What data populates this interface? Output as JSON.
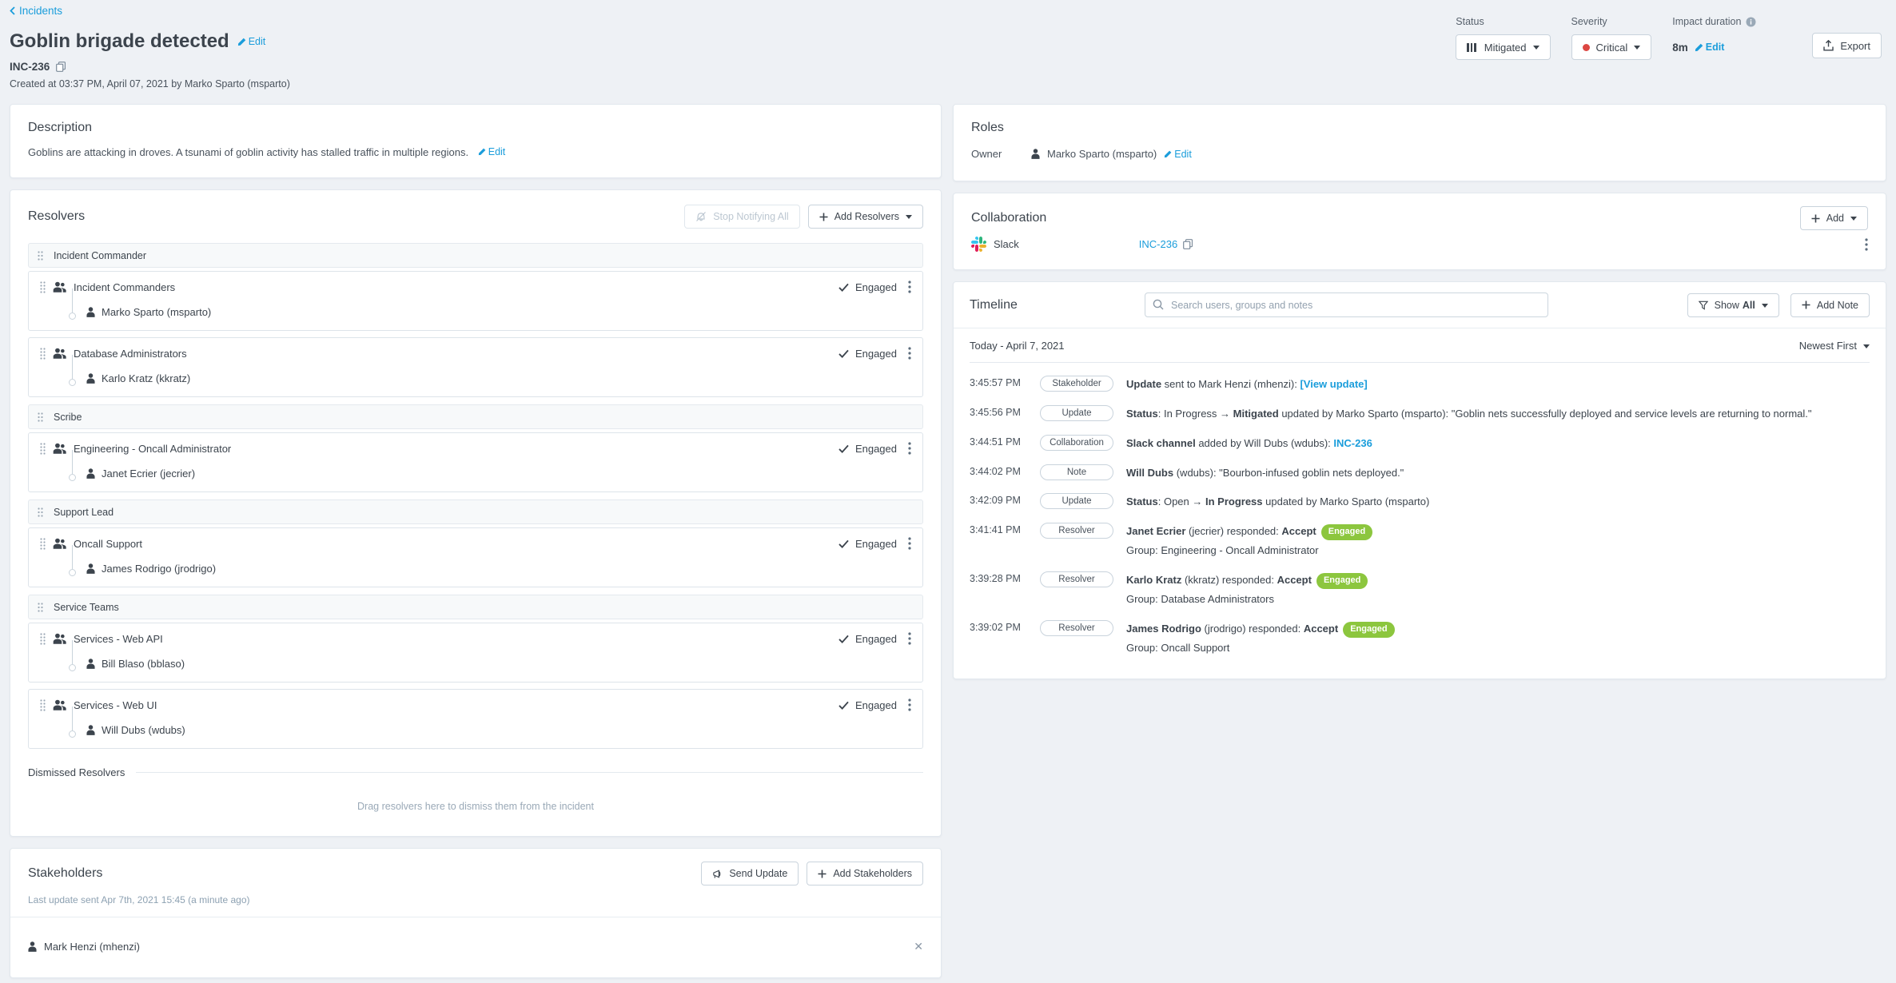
{
  "colors": {
    "accent_blue": "#1a9ddb",
    "engaged_green": "#8cc63e",
    "critical_red": "#dc4742",
    "text_dark": "#3c444d",
    "page_bg": "#eef1f5"
  },
  "header": {
    "back": "Incidents",
    "title": "Goblin brigade detected",
    "edit_label": "Edit",
    "incident_id": "INC-236",
    "created": "Created at 03:37 PM, April 07, 2021 by Marko Sparto (msparto)",
    "status": {
      "label": "Status",
      "value": "Mitigated"
    },
    "severity": {
      "label": "Severity",
      "value": "Critical"
    },
    "impact": {
      "label": "Impact duration",
      "value": "8m",
      "edit": "Edit"
    },
    "export_label": "Export"
  },
  "description": {
    "heading": "Description",
    "text": "Goblins are attacking in droves.  A tsunami of goblin activity has stalled traffic in multiple regions.",
    "edit": "Edit"
  },
  "resolvers": {
    "heading": "Resolvers",
    "stop_notifying": "Stop Notifying All",
    "add_resolvers": "Add Resolvers",
    "engaged_label": "Engaged",
    "sections": [
      {
        "name": "Incident Commander",
        "groups": [
          {
            "name": "Incident Commanders",
            "status": "Engaged",
            "members": [
              "Marko Sparto (msparto)"
            ]
          },
          {
            "name": "Database Administrators",
            "status": "Engaged",
            "members": [
              "Karlo Kratz (kkratz)"
            ]
          }
        ]
      },
      {
        "name": "Scribe",
        "groups": [
          {
            "name": "Engineering - Oncall Administrator",
            "status": "Engaged",
            "members": [
              "Janet Ecrier (jecrier)"
            ]
          }
        ]
      },
      {
        "name": "Support Lead",
        "groups": [
          {
            "name": "Oncall Support",
            "status": "Engaged",
            "members": [
              "James Rodrigo (jrodrigo)"
            ]
          }
        ]
      },
      {
        "name": "Service Teams",
        "groups": [
          {
            "name": "Services - Web API",
            "status": "Engaged",
            "members": [
              "Bill Blaso (bblaso)"
            ]
          },
          {
            "name": "Services - Web UI",
            "status": "Engaged",
            "members": [
              "Will Dubs (wdubs)"
            ]
          }
        ]
      }
    ],
    "dismissed_heading": "Dismissed Resolvers",
    "dismissed_placeholder": "Drag resolvers here to dismiss them from the incident"
  },
  "stakeholders": {
    "heading": "Stakeholders",
    "send_update": "Send Update",
    "add_stakeholders": "Add Stakeholders",
    "last_update": "Last update sent Apr 7th, 2021 15:45 (a minute ago)",
    "people": [
      "Mark Henzi (mhenzi)"
    ]
  },
  "roles": {
    "heading": "Roles",
    "owner_label": "Owner",
    "owner": "Marko Sparto (msparto)",
    "edit": "Edit"
  },
  "collaboration": {
    "heading": "Collaboration",
    "add_label": "Add",
    "service": "Slack",
    "channel": "INC-236"
  },
  "timeline": {
    "heading": "Timeline",
    "search_placeholder": "Search users, groups and notes",
    "filter_show": "Show",
    "filter_all": "All",
    "add_note": "Add Note",
    "date_header": "Today - April 7, 2021",
    "sort_label": "Newest First",
    "entries": [
      {
        "time": "3:45:57 PM",
        "badge": "Stakeholder",
        "segs": [
          {
            "t": "Update",
            "b": 1
          },
          {
            "t": " sent to Mark Henzi (mhenzi): "
          },
          {
            "t": "[View update]",
            "b": 1,
            "c": "link"
          }
        ]
      },
      {
        "time": "3:45:56 PM",
        "badge": "Update",
        "segs": [
          {
            "t": "Status",
            "b": 1
          },
          {
            "t": ": In Progress "
          },
          {
            "t": "→ Mitigated",
            "b": 1
          },
          {
            "t": " updated by Marko Sparto (msparto): \"Goblin nets successfully deployed and service levels are returning to normal.\""
          }
        ]
      },
      {
        "time": "3:44:51 PM",
        "badge": "Collaboration",
        "segs": [
          {
            "t": "Slack channel",
            "b": 1
          },
          {
            "t": " added by Will Dubs (wdubs): "
          },
          {
            "t": "INC-236",
            "b": 1,
            "c": "link"
          }
        ]
      },
      {
        "time": "3:44:02 PM",
        "badge": "Note",
        "segs": [
          {
            "t": "Will Dubs",
            "b": 1
          },
          {
            "t": " (wdubs): \"Bourbon-infused goblin nets deployed.\""
          }
        ]
      },
      {
        "time": "3:42:09 PM",
        "badge": "Update",
        "segs": [
          {
            "t": "Status",
            "b": 1
          },
          {
            "t": ": Open "
          },
          {
            "t": "→ In Progress",
            "b": 1
          },
          {
            "t": " updated by Marko Sparto (msparto)"
          }
        ]
      },
      {
        "time": "3:41:41 PM",
        "badge": "Resolver",
        "segs": [
          {
            "t": "Janet Ecrier",
            "b": 1
          },
          {
            "t": " (jecrier) responded: "
          },
          {
            "t": "Accept",
            "b": 1
          }
        ],
        "tag": "Engaged",
        "line2": "Group: Engineering - Oncall Administrator"
      },
      {
        "time": "3:39:28 PM",
        "badge": "Resolver",
        "segs": [
          {
            "t": "Karlo Kratz",
            "b": 1
          },
          {
            "t": " (kkratz) responded: "
          },
          {
            "t": "Accept",
            "b": 1
          }
        ],
        "tag": "Engaged",
        "line2": "Group: Database Administrators"
      },
      {
        "time": "3:39:02 PM",
        "badge": "Resolver",
        "segs": [
          {
            "t": "James Rodrigo",
            "b": 1
          },
          {
            "t": " (jrodrigo) responded: "
          },
          {
            "t": "Accept",
            "b": 1
          }
        ],
        "tag": "Engaged",
        "line2": "Group: Oncall Support"
      }
    ]
  }
}
